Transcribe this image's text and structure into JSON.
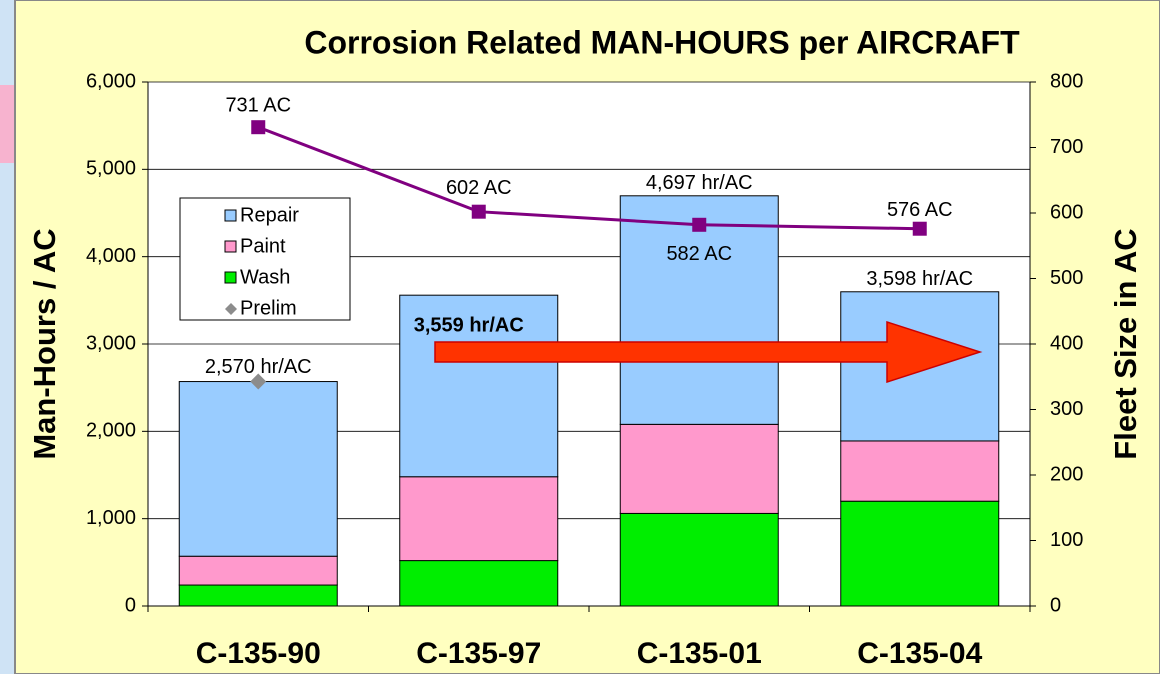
{
  "chart_data": {
    "type": "bar",
    "stacked": true,
    "title": "Corrosion Related MAN-HOURS per AIRCRAFT",
    "ylabel": "Man-Hours / AC",
    "y2label": "Fleet Size in AC",
    "categories": [
      "C-135-90",
      "C-135-97",
      "C-135-01",
      "C-135-04"
    ],
    "series": [
      {
        "name": "Repair",
        "color": "#99ccff",
        "values": [
          2000,
          2079,
          2617,
          1708
        ]
      },
      {
        "name": "Paint",
        "color": "#ff99cc",
        "values": [
          330,
          960,
          1020,
          690
        ]
      },
      {
        "name": "Wash",
        "color": "#00ee00",
        "values": [
          240,
          520,
          1060,
          1200
        ]
      },
      {
        "name": "Prelim",
        "type": "scatter",
        "color": "#8c8c8c",
        "values": [
          2570,
          null,
          null,
          null
        ]
      },
      {
        "type": "line",
        "axis": "y2",
        "color": "#800080",
        "values": [
          731,
          602,
          582,
          576
        ],
        "value_labels": [
          "731 AC",
          "602 AC",
          "582 AC",
          "576 AC"
        ]
      }
    ],
    "totals": {
      "values": [
        2570,
        3559,
        4697,
        3598
      ],
      "value_labels": [
        "2,570 hr/AC",
        "3,559 hr/AC",
        "4,697 hr/AC",
        "3,598 hr/AC"
      ]
    },
    "ylim": [
      0,
      6000
    ],
    "yticks": [
      0,
      {
        "value": 1000,
        "label": "1,000"
      },
      {
        "value": 2000,
        "label": "2,000"
      },
      {
        "value": 3000,
        "label": "3,000"
      },
      {
        "value": 4000,
        "label": "4,000"
      },
      {
        "value": 5000,
        "label": "5,000"
      },
      {
        "value": 6000,
        "label": "6,000"
      }
    ],
    "y2lim": [
      0,
      800
    ],
    "y2ticks": [
      0,
      100,
      200,
      300,
      400,
      500,
      600,
      700,
      800
    ],
    "grid": true,
    "legend": "upper left"
  }
}
